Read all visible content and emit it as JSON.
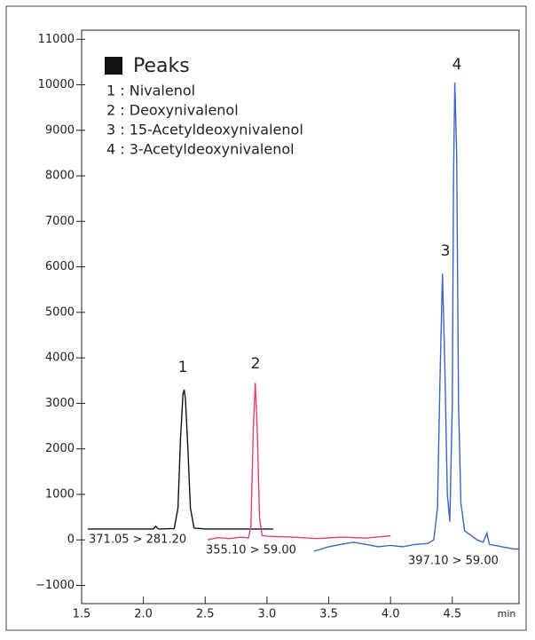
{
  "chart_data": {
    "type": "line",
    "legend_title": "Peaks",
    "legend_items": [
      "1 : Nivalenol",
      "2 : Deoxynivalenol",
      "3 : 15-Acetyldeoxynivalenol",
      "4 : 3-Acetyldeoxynivalenol"
    ],
    "annotations": [
      "1",
      "2",
      "3",
      "4"
    ],
    "x_label": "min",
    "xlim": [
      1.5,
      5.04
    ],
    "xticks": [
      1.5,
      {
        "value": 2,
        "label": "2.0"
      },
      2.5,
      {
        "value": 3,
        "label": "3.0"
      },
      3.5,
      {
        "value": 4,
        "label": "4.0"
      },
      4.5
    ],
    "ylim": [
      -1400,
      11200
    ],
    "yticks": [
      {
        "value": -1000,
        "label": "−1000"
      },
      0,
      1000,
      2000,
      3000,
      4000,
      5000,
      6000,
      7000,
      8000,
      9000,
      10000,
      11000
    ],
    "series": [
      {
        "name": "371.05 > 281.20",
        "color": "#111111",
        "x": [
          1.55,
          2.0,
          2.08,
          2.1,
          2.12,
          2.25,
          2.28,
          2.3,
          2.32,
          2.33,
          2.34,
          2.36,
          2.38,
          2.41,
          2.5,
          3.05
        ],
        "values": [
          240,
          240,
          240,
          300,
          240,
          250,
          700,
          2200,
          3200,
          3300,
          3100,
          2000,
          700,
          260,
          240,
          240
        ]
      },
      {
        "name": "355.10 > 59.00",
        "color": "#e0406a",
        "x": [
          2.52,
          2.6,
          2.7,
          2.8,
          2.85,
          2.87,
          2.89,
          2.905,
          2.92,
          2.94,
          2.96,
          3.0,
          3.2,
          3.4,
          3.6,
          3.8,
          4.0
        ],
        "values": [
          0,
          50,
          30,
          60,
          40,
          300,
          2500,
          3450,
          2500,
          500,
          100,
          80,
          60,
          30,
          60,
          40,
          90
        ]
      },
      {
        "name": "397.10 > 59.00",
        "color": "#3a66c4",
        "x": [
          3.38,
          3.5,
          3.6,
          3.7,
          3.8,
          3.9,
          4.0,
          4.1,
          4.2,
          4.3,
          4.35,
          4.38,
          4.4,
          4.42,
          4.44,
          4.46,
          4.48,
          4.5,
          4.51,
          4.52,
          4.535,
          4.55,
          4.57,
          4.6,
          4.7,
          4.75,
          4.78,
          4.8,
          4.9,
          5.0,
          5.04
        ],
        "values": [
          -250,
          -150,
          -100,
          -50,
          -100,
          -150,
          -120,
          -150,
          -100,
          -80,
          0,
          700,
          3500,
          5850,
          3800,
          1000,
          400,
          3000,
          8000,
          10050,
          8500,
          3000,
          800,
          200,
          0,
          -50,
          150,
          -100,
          -150,
          -200,
          -200
        ]
      }
    ]
  }
}
